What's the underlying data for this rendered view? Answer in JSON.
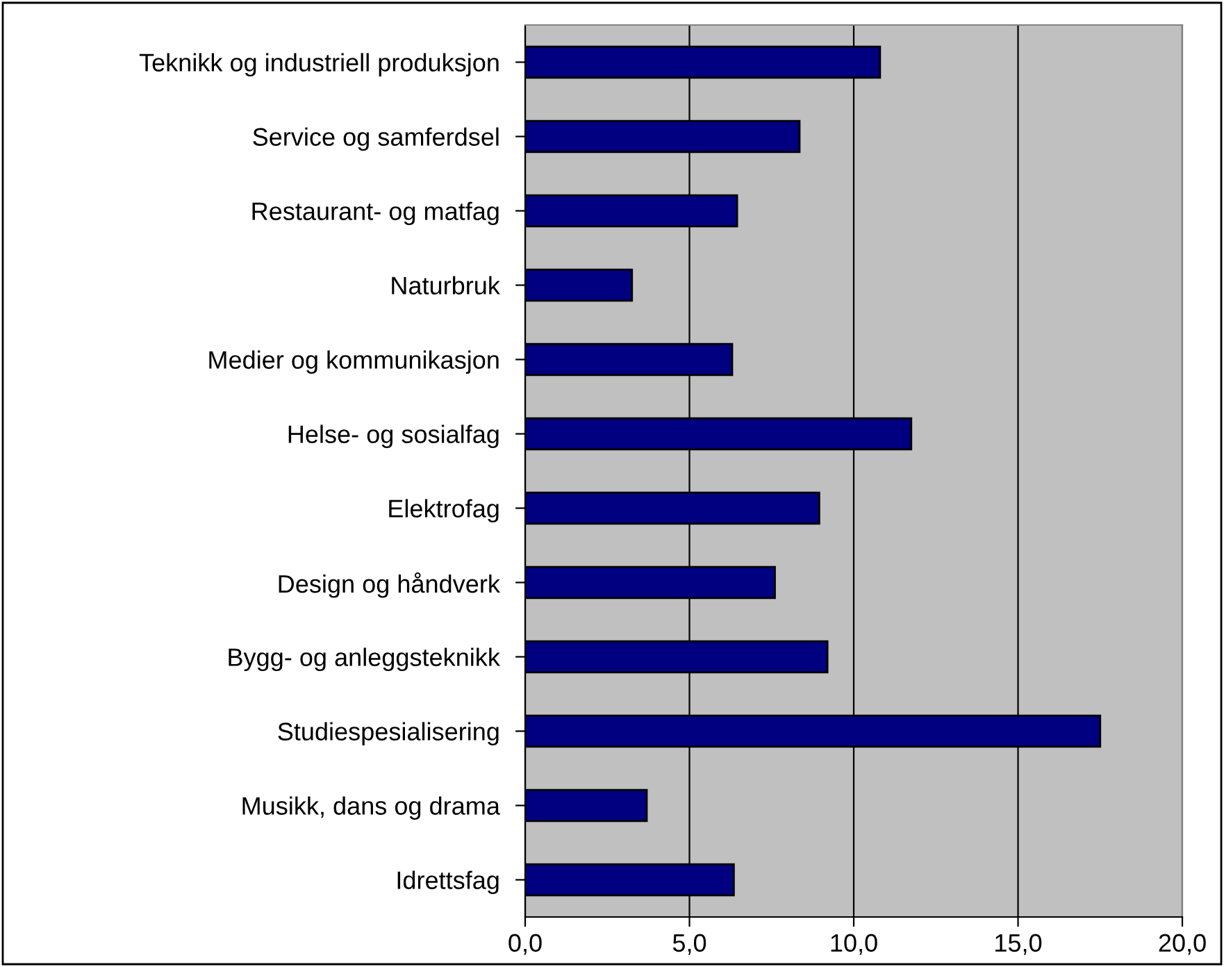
{
  "chart_data": {
    "type": "bar",
    "orientation": "horizontal",
    "categories": [
      "Teknikk og industriell produksjon",
      "Service og samferdsel",
      "Restaurant- og matfag",
      "Naturbruk",
      "Medier og kommunikasjon",
      "Helse- og sosialfag",
      "Elektrofag",
      "Design og håndverk",
      "Bygg- og anleggsteknikk",
      "Studiespesialisering",
      "Musikk, dans og drama",
      "Idrettsfag"
    ],
    "values": [
      10.8,
      8.35,
      6.45,
      3.25,
      6.3,
      11.75,
      8.95,
      7.6,
      9.2,
      17.5,
      3.7,
      6.35
    ],
    "color": "#000080",
    "xlim": [
      0,
      20
    ],
    "xticks": [
      {
        "value": 0,
        "label": "0,0"
      },
      {
        "value": 5,
        "label": "5,0"
      },
      {
        "value": 10,
        "label": "10,0"
      },
      {
        "value": 15,
        "label": "15,0"
      },
      {
        "value": 20,
        "label": "20,0"
      }
    ],
    "grid": "x",
    "legend": false
  }
}
